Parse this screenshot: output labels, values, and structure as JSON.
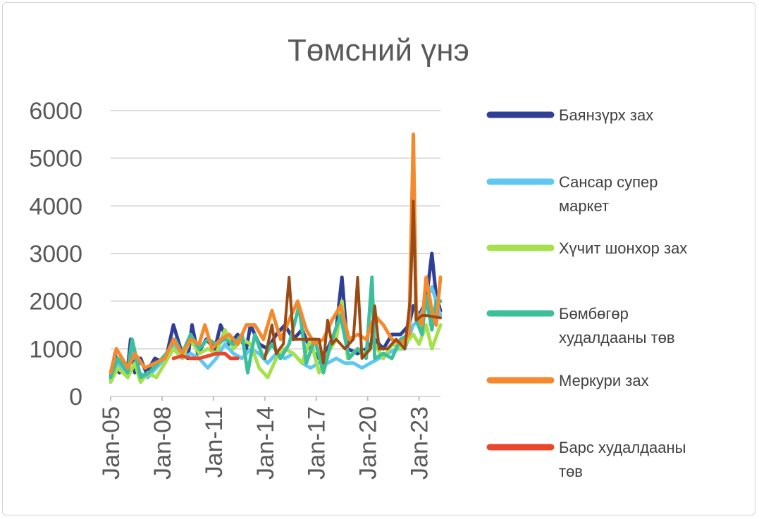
{
  "chart_data": {
    "type": "line",
    "title": "Төмсний үнэ",
    "xlabel": "",
    "ylabel": "",
    "ylim": [
      0,
      6000
    ],
    "yticks": [
      0,
      1000,
      2000,
      3000,
      4000,
      5000,
      6000
    ],
    "xticks": [
      "Jan-05",
      "Jan-08",
      "Jan-11",
      "Jan-14",
      "Jan-17",
      "Jan-20",
      "Jan-23"
    ],
    "x_start": "2005-01",
    "x_end": "2024-04",
    "grid": true,
    "legend_position": "right",
    "series": [
      {
        "name": "Баянзүрх зах",
        "color": "#2f3f96",
        "points": [
          [
            "2005-01",
            400
          ],
          [
            "2005-04",
            900
          ],
          [
            "2005-07",
            500
          ],
          [
            "2006-01",
            600
          ],
          [
            "2006-03",
            1200
          ],
          [
            "2006-06",
            500
          ],
          [
            "2006-10",
            800
          ],
          [
            "2007-02",
            500
          ],
          [
            "2007-08",
            800
          ],
          [
            "2008-03",
            700
          ],
          [
            "2008-09",
            1500
          ],
          [
            "2009-02",
            1000
          ],
          [
            "2009-07",
            800
          ],
          [
            "2009-10",
            1500
          ],
          [
            "2010-02",
            900
          ],
          [
            "2010-08",
            1200
          ],
          [
            "2011-02",
            1000
          ],
          [
            "2011-06",
            1500
          ],
          [
            "2011-12",
            1100
          ],
          [
            "2012-06",
            1300
          ],
          [
            "2012-12",
            1000
          ],
          [
            "2013-03",
            1500
          ],
          [
            "2013-09",
            1100
          ],
          [
            "2014-03",
            1000
          ],
          [
            "2014-09",
            1300
          ],
          [
            "2015-03",
            1500
          ],
          [
            "2015-09",
            1200
          ],
          [
            "2016-03",
            1400
          ],
          [
            "2016-09",
            1000
          ],
          [
            "2017-03",
            800
          ],
          [
            "2017-09",
            1000
          ],
          [
            "2018-03",
            1400
          ],
          [
            "2018-07",
            2500
          ],
          [
            "2018-11",
            1000
          ],
          [
            "2019-06",
            900
          ],
          [
            "2019-12",
            1000
          ],
          [
            "2020-06",
            1200
          ],
          [
            "2020-12",
            1000
          ],
          [
            "2021-06",
            1300
          ],
          [
            "2021-12",
            1300
          ],
          [
            "2022-06",
            1500
          ],
          [
            "2022-09",
            1900
          ],
          [
            "2023-01",
            1700
          ],
          [
            "2023-06",
            2000
          ],
          [
            "2023-10",
            3000
          ],
          [
            "2024-01",
            2100
          ],
          [
            "2024-04",
            1800
          ]
        ]
      },
      {
        "name": "Сансар супер маркет",
        "color": "#5ec8f0",
        "points": [
          [
            "2005-01",
            350
          ],
          [
            "2005-06",
            700
          ],
          [
            "2006-01",
            400
          ],
          [
            "2006-04",
            1100
          ],
          [
            "2006-09",
            500
          ],
          [
            "2007-03",
            400
          ],
          [
            "2007-09",
            600
          ],
          [
            "2008-03",
            800
          ],
          [
            "2008-09",
            1100
          ],
          [
            "2009-03",
            800
          ],
          [
            "2009-09",
            900
          ],
          [
            "2010-03",
            800
          ],
          [
            "2010-09",
            600
          ],
          [
            "2011-03",
            800
          ],
          [
            "2011-09",
            1100
          ],
          [
            "2012-03",
            900
          ],
          [
            "2012-09",
            800
          ],
          [
            "2013-03",
            1000
          ],
          [
            "2013-09",
            900
          ],
          [
            "2014-03",
            700
          ],
          [
            "2014-09",
            900
          ],
          [
            "2015-03",
            800
          ],
          [
            "2015-09",
            900
          ],
          [
            "2016-03",
            700
          ],
          [
            "2016-09",
            600
          ],
          [
            "2017-03",
            700
          ],
          [
            "2017-09",
            700
          ],
          [
            "2018-03",
            800
          ],
          [
            "2018-09",
            700
          ],
          [
            "2019-03",
            700
          ],
          [
            "2019-09",
            600
          ],
          [
            "2020-03",
            700
          ],
          [
            "2020-09",
            800
          ],
          [
            "2021-03",
            900
          ],
          [
            "2021-09",
            1000
          ],
          [
            "2022-03",
            1000
          ],
          [
            "2022-09",
            1500
          ],
          [
            "2023-01",
            1600
          ],
          [
            "2023-06",
            2000
          ],
          [
            "2023-10",
            2300
          ],
          [
            "2024-04",
            1700
          ]
        ]
      },
      {
        "name": "Хүчит шонхор зах",
        "color": "#a6e04c",
        "points": [
          [
            "2005-01",
            300
          ],
          [
            "2005-06",
            600
          ],
          [
            "2006-01",
            400
          ],
          [
            "2006-06",
            700
          ],
          [
            "2006-10",
            300
          ],
          [
            "2007-03",
            500
          ],
          [
            "2007-09",
            400
          ],
          [
            "2008-03",
            700
          ],
          [
            "2008-09",
            1000
          ],
          [
            "2009-03",
            800
          ],
          [
            "2009-09",
            1200
          ],
          [
            "2010-03",
            900
          ],
          [
            "2010-09",
            1000
          ],
          [
            "2011-03",
            900
          ],
          [
            "2011-09",
            1400
          ],
          [
            "2012-03",
            1000
          ],
          [
            "2012-09",
            1200
          ],
          [
            "2013-03",
            1100
          ],
          [
            "2013-09",
            600
          ],
          [
            "2014-03",
            400
          ],
          [
            "2014-09",
            800
          ],
          [
            "2015-03",
            1000
          ],
          [
            "2015-09",
            900
          ],
          [
            "2016-03",
            700
          ],
          [
            "2016-09",
            1200
          ],
          [
            "2017-03",
            500
          ],
          [
            "2017-09",
            900
          ],
          [
            "2018-03",
            1200
          ],
          [
            "2018-07",
            2000
          ],
          [
            "2018-11",
            800
          ],
          [
            "2019-06",
            1000
          ],
          [
            "2019-12",
            900
          ],
          [
            "2020-06",
            1100
          ],
          [
            "2020-12",
            800
          ],
          [
            "2021-06",
            1100
          ],
          [
            "2021-12",
            1000
          ],
          [
            "2022-06",
            1200
          ],
          [
            "2022-09",
            1300
          ],
          [
            "2023-01",
            1100
          ],
          [
            "2023-06",
            1500
          ],
          [
            "2023-10",
            1000
          ],
          [
            "2024-04",
            1500
          ]
        ]
      },
      {
        "name": "Бөмбөгөр худалдааны төв",
        "color": "#3dbf9c",
        "points": [
          [
            "2005-01",
            400
          ],
          [
            "2005-06",
            800
          ],
          [
            "2006-01",
            500
          ],
          [
            "2006-04",
            1200
          ],
          [
            "2006-10",
            400
          ],
          [
            "2007-04",
            500
          ],
          [
            "2007-10",
            700
          ],
          [
            "2008-04",
            900
          ],
          [
            "2008-10",
            1200
          ],
          [
            "2009-03",
            900
          ],
          [
            "2009-09",
            1300
          ],
          [
            "2010-03",
            1000
          ],
          [
            "2010-09",
            1200
          ],
          [
            "2011-03",
            1100
          ],
          [
            "2011-09",
            1200
          ],
          [
            "2012-03",
            1100
          ],
          [
            "2012-09",
            1300
          ],
          [
            "2013-01",
            500
          ],
          [
            "2013-06",
            1300
          ],
          [
            "2013-12",
            800
          ],
          [
            "2014-06",
            1100
          ],
          [
            "2014-12",
            800
          ],
          [
            "2015-06",
            1100
          ],
          [
            "2016-01",
            1900
          ],
          [
            "2016-06",
            700
          ],
          [
            "2016-12",
            1200
          ],
          [
            "2017-06",
            500
          ],
          [
            "2017-12",
            1200
          ],
          [
            "2018-06",
            1700
          ],
          [
            "2018-12",
            800
          ],
          [
            "2019-06",
            1000
          ],
          [
            "2019-12",
            800
          ],
          [
            "2020-04",
            2500
          ],
          [
            "2020-06",
            800
          ],
          [
            "2020-12",
            900
          ],
          [
            "2021-06",
            800
          ],
          [
            "2021-12",
            1200
          ],
          [
            "2022-06",
            1300
          ],
          [
            "2022-09",
            5000
          ],
          [
            "2022-11",
            1600
          ],
          [
            "2023-03",
            1300
          ],
          [
            "2023-06",
            2100
          ],
          [
            "2023-10",
            1400
          ],
          [
            "2024-01",
            2000
          ],
          [
            "2024-04",
            2000
          ]
        ]
      },
      {
        "name": "Меркури зах",
        "color": "#f5892d",
        "points": [
          [
            "2005-01",
            500
          ],
          [
            "2005-05",
            1000
          ],
          [
            "2006-01",
            600
          ],
          [
            "2006-06",
            900
          ],
          [
            "2007-01",
            600
          ],
          [
            "2007-08",
            700
          ],
          [
            "2008-03",
            800
          ],
          [
            "2008-09",
            1200
          ],
          [
            "2009-03",
            900
          ],
          [
            "2009-09",
            1200
          ],
          [
            "2010-03",
            1100
          ],
          [
            "2010-07",
            1500
          ],
          [
            "2010-12",
            1000
          ],
          [
            "2011-06",
            1200
          ],
          [
            "2011-12",
            1300
          ],
          [
            "2012-06",
            1100
          ],
          [
            "2012-12",
            1500
          ],
          [
            "2013-06",
            1500
          ],
          [
            "2013-12",
            1200
          ],
          [
            "2014-06",
            1800
          ],
          [
            "2014-12",
            1200
          ],
          [
            "2015-06",
            1600
          ],
          [
            "2015-12",
            2000
          ],
          [
            "2016-06",
            1400
          ],
          [
            "2016-12",
            1100
          ],
          [
            "2017-06",
            1200
          ],
          [
            "2017-12",
            1600
          ],
          [
            "2018-06",
            1900
          ],
          [
            "2018-12",
            1200
          ],
          [
            "2019-06",
            1300
          ],
          [
            "2019-12",
            1200
          ],
          [
            "2020-06",
            1700
          ],
          [
            "2020-12",
            1500
          ],
          [
            "2021-06",
            1200
          ],
          [
            "2021-12",
            1100
          ],
          [
            "2022-06",
            1300
          ],
          [
            "2022-09",
            5500
          ],
          [
            "2022-11",
            1800
          ],
          [
            "2023-03",
            1500
          ],
          [
            "2023-06",
            2500
          ],
          [
            "2023-10",
            1800
          ],
          [
            "2024-01",
            1500
          ],
          [
            "2024-04",
            2500
          ]
        ]
      },
      {
        "name": "Барс худалдааны төв",
        "color": "#e8472c",
        "points": [
          [
            "2008-09",
            800
          ],
          [
            "2009-03",
            850
          ],
          [
            "2009-09",
            800
          ],
          [
            "2010-03",
            800
          ],
          [
            "2010-09",
            850
          ],
          [
            "2011-03",
            900
          ],
          [
            "2011-09",
            900
          ],
          [
            "2012-01",
            800
          ],
          [
            "2012-06",
            800
          ]
        ]
      },
      {
        "name": "",
        "color": "#9b4a14",
        "points": [
          [
            "2014-01",
            800
          ],
          [
            "2014-06",
            1500
          ],
          [
            "2014-09",
            900
          ],
          [
            "2015-02",
            1100
          ],
          [
            "2015-06",
            2500
          ],
          [
            "2015-09",
            1200
          ],
          [
            "2016-06",
            1200
          ],
          [
            "2016-12",
            1200
          ],
          [
            "2017-03",
            1200
          ],
          [
            "2017-06",
            700
          ],
          [
            "2017-09",
            1600
          ],
          [
            "2017-12",
            1100
          ],
          [
            "2018-03",
            1200
          ],
          [
            "2018-09",
            1000
          ],
          [
            "2019-03",
            1200
          ],
          [
            "2019-06",
            2500
          ],
          [
            "2019-09",
            800
          ],
          [
            "2020-03",
            1000
          ],
          [
            "2020-06",
            1900
          ],
          [
            "2020-09",
            1000
          ],
          [
            "2021-03",
            1000
          ],
          [
            "2021-09",
            1200
          ],
          [
            "2022-03",
            1000
          ],
          [
            "2022-07",
            2100
          ],
          [
            "2022-09",
            4100
          ],
          [
            "2022-11",
            1600
          ],
          [
            "2023-03",
            1700
          ],
          [
            "2023-06",
            1700
          ],
          [
            "2024-04",
            1650
          ]
        ]
      }
    ]
  }
}
